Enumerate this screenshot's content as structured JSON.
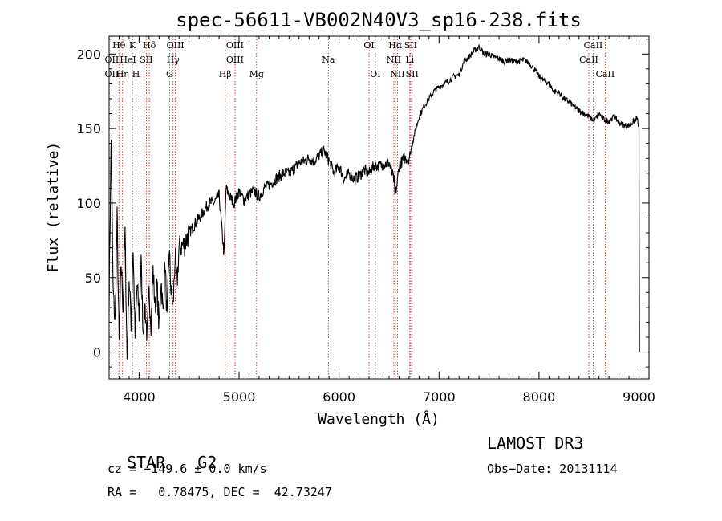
{
  "chart_data": {
    "type": "line",
    "title": "spec-56611-VB002N40V3_sp16-238.fits",
    "xlabel": "Wavelength (Å)",
    "ylabel": "Flux (relative)",
    "xlim": [
      3700,
      9100
    ],
    "ylim": [
      -18,
      212
    ],
    "xticks": [
      4000,
      5000,
      6000,
      7000,
      8000,
      9000
    ],
    "yticks": [
      0,
      50,
      100,
      150,
      200
    ],
    "grid": false,
    "legend": "none",
    "series": [
      {
        "name": "flux",
        "x": [
          3700,
          3720,
          3740,
          3760,
          3780,
          3800,
          3820,
          3840,
          3860,
          3880,
          3900,
          3920,
          3940,
          3960,
          3980,
          4000,
          4020,
          4040,
          4060,
          4080,
          4100,
          4120,
          4140,
          4160,
          4180,
          4200,
          4220,
          4240,
          4260,
          4280,
          4300,
          4320,
          4340,
          4360,
          4380,
          4400,
          4450,
          4500,
          4550,
          4600,
          4650,
          4700,
          4750,
          4800,
          4850,
          4870,
          4900,
          4950,
          5000,
          5050,
          5100,
          5150,
          5200,
          5250,
          5300,
          5350,
          5400,
          5450,
          5500,
          5550,
          5600,
          5650,
          5700,
          5750,
          5800,
          5850,
          5890,
          5950,
          6000,
          6050,
          6100,
          6150,
          6200,
          6250,
          6300,
          6350,
          6400,
          6450,
          6500,
          6550,
          6560,
          6580,
          6600,
          6650,
          6700,
          6750,
          6800,
          6850,
          6900,
          6950,
          7000,
          7050,
          7100,
          7150,
          7200,
          7250,
          7300,
          7350,
          7400,
          7450,
          7500,
          7550,
          7600,
          7650,
          7700,
          7750,
          7800,
          7850,
          7900,
          7950,
          8000,
          8050,
          8100,
          8150,
          8200,
          8250,
          8300,
          8350,
          8400,
          8450,
          8500,
          8550,
          8600,
          8650,
          8700,
          8750,
          8800,
          8850,
          8900,
          8950,
          8980,
          9000,
          9005
        ],
        "y": [
          35,
          142,
          40,
          20,
          90,
          5,
          60,
          30,
          80,
          -5,
          50,
          20,
          70,
          10,
          45,
          25,
          60,
          15,
          30,
          10,
          40,
          20,
          55,
          30,
          45,
          15,
          50,
          25,
          60,
          20,
          70,
          40,
          30,
          65,
          45,
          70,
          72,
          80,
          85,
          90,
          95,
          100,
          100,
          105,
          65,
          110,
          105,
          100,
          108,
          102,
          106,
          108,
          104,
          110,
          112,
          115,
          118,
          120,
          120,
          123,
          127,
          128,
          130,
          128,
          132,
          135,
          130,
          120,
          125,
          116,
          120,
          116,
          118,
          122,
          120,
          125,
          125,
          126,
          127,
          115,
          105,
          112,
          125,
          130,
          130,
          145,
          158,
          165,
          170,
          175,
          178,
          180,
          182,
          185,
          186,
          195,
          198,
          202,
          205,
          200,
          200,
          198,
          197,
          195,
          196,
          195,
          195,
          196,
          194,
          190,
          185,
          182,
          180,
          175,
          174,
          170,
          168,
          165,
          162,
          160,
          158,
          155,
          160,
          156,
          155,
          158,
          154,
          152,
          152,
          155,
          157,
          150,
          0
        ]
      }
    ],
    "line_markers": [
      {
        "label": "Hθ",
        "x": 3798,
        "row": 0
      },
      {
        "label": "OII",
        "x": 3727,
        "row": 1
      },
      {
        "label": "OII",
        "x": 3727,
        "row": 2
      },
      {
        "label": "Hη",
        "x": 3835,
        "row": 2
      },
      {
        "label": "K",
        "x": 3934,
        "row": 0
      },
      {
        "label": "HeI",
        "x": 3889,
        "row": 1
      },
      {
        "label": "H",
        "x": 3969,
        "row": 2
      },
      {
        "label": "Hδ",
        "x": 4102,
        "row": 0
      },
      {
        "label": "SII",
        "x": 4072,
        "row": 1
      },
      {
        "label": "OIII",
        "x": 4363,
        "row": 0
      },
      {
        "label": "Hγ",
        "x": 4340,
        "row": 1
      },
      {
        "label": "G",
        "x": 4305,
        "row": 2
      },
      {
        "label": "OIII",
        "x": 4959,
        "row": 0
      },
      {
        "label": "OIII",
        "x": 4959,
        "row": 1
      },
      {
        "label": "Hβ",
        "x": 4861,
        "row": 2
      },
      {
        "label": "Mg",
        "x": 5175,
        "row": 2
      },
      {
        "label": "Na",
        "x": 5893,
        "row": 1
      },
      {
        "label": "OI",
        "x": 6300,
        "row": 0
      },
      {
        "label": "OI",
        "x": 6363,
        "row": 2
      },
      {
        "label": "Hα",
        "x": 6563,
        "row": 0
      },
      {
        "label": "SII",
        "x": 6716,
        "row": 0
      },
      {
        "label": "NII",
        "x": 6548,
        "row": 1
      },
      {
        "label": "Li",
        "x": 6707,
        "row": 1
      },
      {
        "label": "NII",
        "x": 6584,
        "row": 2
      },
      {
        "label": "SII",
        "x": 6731,
        "row": 2
      },
      {
        "label": "CaII",
        "x": 8542,
        "row": 0
      },
      {
        "label": "CaII",
        "x": 8498,
        "row": 1
      },
      {
        "label": "CaII",
        "x": 8662,
        "row": 2
      }
    ]
  },
  "info": {
    "object_class": "STAR",
    "subclass": "G2",
    "survey": "LAMOST DR3",
    "cz_text": "cz = −149.6 ± 0.0 km/s",
    "obs_date_text": "Obs−Date: 20131114",
    "coords_text": "RA =   0.78475, DEC =  42.73247"
  }
}
